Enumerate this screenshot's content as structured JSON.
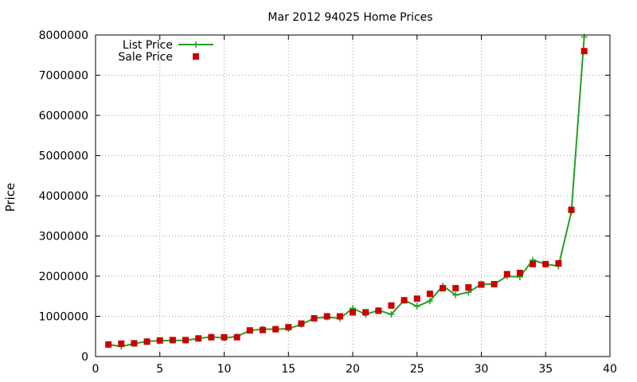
{
  "chart_data": {
    "type": "scatter",
    "title": "Mar 2012 94025 Home Prices",
    "xlabel": "",
    "ylabel": "Price",
    "xlim": [
      0,
      40
    ],
    "ylim": [
      0,
      8000000
    ],
    "x_ticks": [
      0,
      5,
      10,
      15,
      20,
      25,
      30,
      35,
      40
    ],
    "y_ticks": [
      0,
      1000000,
      2000000,
      3000000,
      4000000,
      5000000,
      6000000,
      7000000,
      8000000
    ],
    "grid": true,
    "legend_position": "top-left",
    "series": [
      {
        "name": "List Price",
        "style": "line-with-plus-markers",
        "color": "#22a022",
        "x": [
          1,
          2,
          3,
          4,
          5,
          6,
          7,
          8,
          9,
          10,
          11,
          12,
          13,
          14,
          15,
          16,
          17,
          18,
          19,
          20,
          21,
          22,
          23,
          24,
          25,
          26,
          27,
          28,
          29,
          30,
          31,
          32,
          33,
          34,
          35,
          36,
          37,
          38
        ],
        "y": [
          300000,
          250000,
          320000,
          380000,
          390000,
          400000,
          400000,
          450000,
          490000,
          460000,
          500000,
          650000,
          680000,
          680000,
          690000,
          800000,
          950000,
          980000,
          950000,
          1200000,
          1050000,
          1150000,
          1050000,
          1400000,
          1250000,
          1380000,
          1760000,
          1530000,
          1600000,
          1800000,
          1800000,
          2000000,
          1980000,
          2400000,
          2300000,
          2250000,
          3600000,
          7950000
        ]
      },
      {
        "name": "Sale Price",
        "style": "square-markers",
        "color": "#cc0000",
        "x": [
          1,
          2,
          3,
          4,
          5,
          6,
          7,
          8,
          9,
          10,
          11,
          12,
          13,
          14,
          15,
          16,
          17,
          18,
          19,
          20,
          21,
          22,
          23,
          24,
          25,
          26,
          27,
          28,
          29,
          30,
          31,
          32,
          33,
          34,
          35,
          36,
          37,
          38
        ],
        "y": [
          300000,
          320000,
          330000,
          370000,
          400000,
          410000,
          410000,
          450000,
          480000,
          480000,
          480000,
          650000,
          660000,
          680000,
          730000,
          820000,
          950000,
          1000000,
          1000000,
          1100000,
          1100000,
          1140000,
          1270000,
          1400000,
          1440000,
          1560000,
          1700000,
          1700000,
          1720000,
          1790000,
          1800000,
          2050000,
          2080000,
          2300000,
          2300000,
          2320000,
          3650000,
          7600000
        ]
      }
    ]
  }
}
